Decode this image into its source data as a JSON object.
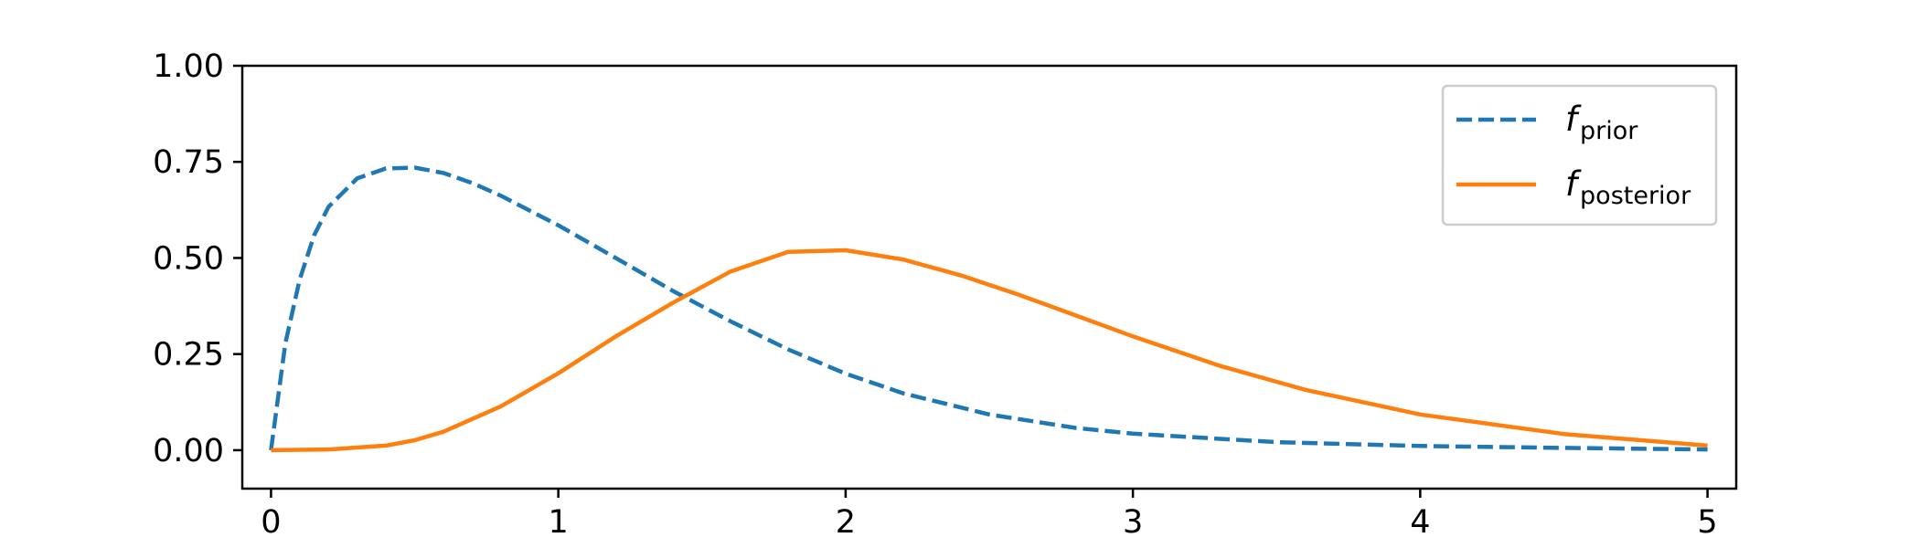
{
  "chart_data": {
    "type": "line",
    "title": "",
    "xlabel": "",
    "ylabel": "",
    "xlim": [
      -0.1,
      5.1
    ],
    "ylim": [
      -0.1,
      1.0
    ],
    "xticks": [
      "0",
      "1",
      "2",
      "3",
      "4",
      "5"
    ],
    "yticks": [
      "0.00",
      "0.25",
      "0.50",
      "0.75",
      "1.00"
    ],
    "grid": false,
    "legend_position": "top-right",
    "series": [
      {
        "name": "prior",
        "legend": {
          "main": "f",
          "sub": "prior"
        },
        "color": "#1f77b4",
        "style": "dashed",
        "x": [
          0,
          0.05,
          0.1,
          0.15,
          0.2,
          0.3,
          0.4,
          0.5,
          0.6,
          0.7,
          0.8,
          1.0,
          1.2,
          1.4,
          1.6,
          1.8,
          2.0,
          2.2,
          2.5,
          2.8,
          3.0,
          3.5,
          4.0,
          4.5,
          5.0
        ],
        "y": [
          0,
          0.278,
          0.444,
          0.559,
          0.633,
          0.707,
          0.733,
          0.735,
          0.721,
          0.695,
          0.662,
          0.585,
          0.5,
          0.414,
          0.335,
          0.262,
          0.199,
          0.148,
          0.093,
          0.058,
          0.043,
          0.021,
          0.011,
          0.006,
          0.002
        ]
      },
      {
        "name": "posterior",
        "legend": {
          "main": "f",
          "sub": "posterior"
        },
        "color": "#ff7f0e",
        "style": "solid",
        "x": [
          0,
          0.2,
          0.4,
          0.5,
          0.6,
          0.8,
          1.0,
          1.2,
          1.4,
          1.6,
          1.8,
          2.0,
          2.2,
          2.4,
          2.6,
          2.8,
          3.0,
          3.3,
          3.6,
          4.0,
          4.5,
          5.0
        ],
        "y": [
          0,
          0.002,
          0.012,
          0.026,
          0.048,
          0.114,
          0.2,
          0.296,
          0.384,
          0.465,
          0.516,
          0.52,
          0.496,
          0.455,
          0.405,
          0.351,
          0.296,
          0.22,
          0.157,
          0.093,
          0.042,
          0.012
        ]
      }
    ]
  }
}
